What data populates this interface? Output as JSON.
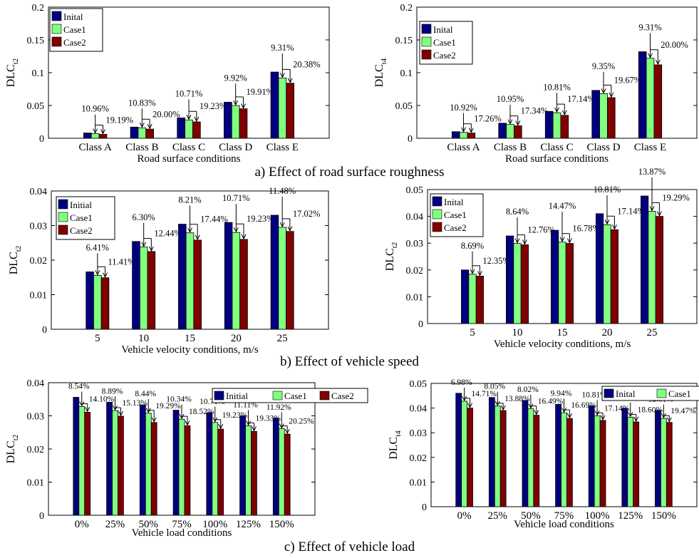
{
  "captions": {
    "a": "a) Effect of road surface roughness",
    "b": "b) Effect of vehicle speed",
    "c": "c) Effect of vehicle load"
  },
  "colors": {
    "initial": "#00007F",
    "case1": "#80FF80",
    "case2": "#800000"
  },
  "chart_data": [
    {
      "type": "bar",
      "xlabel": "Road surface conditions",
      "ylabel": "DLC",
      "ylabel_sub": "t2",
      "ylim": [
        0,
        0.2
      ],
      "yticks": [
        "0",
        "0.05",
        "0.1",
        "0.15",
        "0.2"
      ],
      "categories": [
        "Class A",
        "Class B",
        "Class C",
        "Class D",
        "Class E"
      ],
      "legend": "top-left",
      "series": [
        {
          "name": "Inital",
          "values": [
            0.008,
            0.017,
            0.031,
            0.055,
            0.101
          ]
        },
        {
          "name": "Case1",
          "values": [
            0.007,
            0.016,
            0.028,
            0.05,
            0.092
          ]
        },
        {
          "name": "Case2",
          "values": [
            0.006,
            0.014,
            0.025,
            0.045,
            0.084
          ]
        }
      ],
      "annotations": [
        {
          "c1": "10.96%",
          "c2": "19.19%"
        },
        {
          "c1": "10.83%",
          "c2": "20.00%"
        },
        {
          "c1": "10.71%",
          "c2": "19.23%"
        },
        {
          "c1": "9.92%",
          "c2": "19.91%"
        },
        {
          "c1": "9.31%",
          "c2": "20.38%"
        }
      ]
    },
    {
      "type": "bar",
      "xlabel": "Road surface conditions",
      "ylabel": "DLC",
      "ylabel_sub": "t4",
      "ylim": [
        0,
        0.2
      ],
      "yticks": [
        "0",
        "0.05",
        "0.1",
        "0.15",
        "0.2"
      ],
      "categories": [
        "Class A",
        "Class B",
        "Class C",
        "Class D",
        "Class E"
      ],
      "legend": "top-left",
      "series": [
        {
          "name": "Inital",
          "values": [
            0.01,
            0.023,
            0.041,
            0.073,
            0.132
          ]
        },
        {
          "name": "Case1",
          "values": [
            0.009,
            0.021,
            0.039,
            0.068,
            0.122
          ]
        },
        {
          "name": "Case2",
          "values": [
            0.008,
            0.019,
            0.035,
            0.062,
            0.112
          ]
        }
      ],
      "annotations": [
        {
          "c1": "10.92%",
          "c2": "17.26%"
        },
        {
          "c1": "10.95%",
          "c2": "17.34%"
        },
        {
          "c1": "10.81%",
          "c2": "17.14%"
        },
        {
          "c1": "9.35%",
          "c2": "19.67%"
        },
        {
          "c1": "9.31%",
          "c2": "20.00%"
        }
      ]
    },
    {
      "type": "bar",
      "xlabel": "Vehicle velocity conditions, m/s",
      "ylabel": "DLC",
      "ylabel_sub": "t2",
      "ylim": [
        0,
        0.04
      ],
      "yticks": [
        "0",
        "0.01",
        "0.02",
        "0.03",
        "0.04"
      ],
      "categories": [
        "5",
        "10",
        "15",
        "20",
        "25"
      ],
      "legend": "top-left",
      "series": [
        {
          "name": "Initial",
          "values": [
            0.0166,
            0.0254,
            0.0304,
            0.0309,
            0.033
          ]
        },
        {
          "name": "Case1",
          "values": [
            0.0156,
            0.0238,
            0.0279,
            0.028,
            0.0295
          ]
        },
        {
          "name": "Case2",
          "values": [
            0.0149,
            0.0225,
            0.0258,
            0.026,
            0.0283
          ]
        }
      ],
      "annotations": [
        {
          "c1": "6.41%",
          "c2": "11.41%"
        },
        {
          "c1": "6.30%",
          "c2": "12.44%"
        },
        {
          "c1": "8.21%",
          "c2": "17.44%"
        },
        {
          "c1": "10.71%",
          "c2": "19.23%"
        },
        {
          "c1": "11.48%",
          "c2": "17.02%"
        }
      ]
    },
    {
      "type": "bar",
      "xlabel": "Vehicle velocity conditions, m/s",
      "ylabel": "DLC",
      "ylabel_sub": "t2",
      "ylim": [
        0,
        0.05
      ],
      "yticks": [
        "0",
        "0.01",
        "0.02",
        "0.03",
        "0.04",
        "0.05"
      ],
      "categories": [
        "5",
        "10",
        "15",
        "20",
        "25"
      ],
      "legend": "top-left",
      "series": [
        {
          "name": "Inital",
          "values": [
            0.02,
            0.0327,
            0.0348,
            0.041,
            0.0476
          ]
        },
        {
          "name": "Case1",
          "values": [
            0.0184,
            0.0299,
            0.0304,
            0.0369,
            0.0419
          ]
        },
        {
          "name": "Case2",
          "values": [
            0.0177,
            0.0294,
            0.0299,
            0.035,
            0.04
          ]
        }
      ],
      "annotations": [
        {
          "c1": "8.69%",
          "c2": "12.35%"
        },
        {
          "c1": "8.64%",
          "c2": "12.76%"
        },
        {
          "c1": "14.47%",
          "c2": "16.78%"
        },
        {
          "c1": "10.81%",
          "c2": "17.14%"
        },
        {
          "c1": "13.87%",
          "c2": "19.29%"
        }
      ]
    },
    {
      "type": "bar",
      "xlabel": "Vehicle load conditions",
      "ylabel": "DLC",
      "ylabel_sub": "t2",
      "ylim": [
        0,
        0.04
      ],
      "yticks": [
        "0",
        "0.01",
        "0.02",
        "0.03",
        "0.04"
      ],
      "categories": [
        "0%",
        "25%",
        "50%",
        "75%",
        "100%",
        "125%",
        "150%"
      ],
      "legend": "top-right",
      "series": [
        {
          "name": "Initial",
          "values": [
            0.0356,
            0.0341,
            0.0333,
            0.0317,
            0.031,
            0.03,
            0.0293
          ]
        },
        {
          "name": "Case1",
          "values": [
            0.0328,
            0.0316,
            0.0308,
            0.029,
            0.028,
            0.027,
            0.0261
          ]
        },
        {
          "name": "Case2",
          "values": [
            0.0311,
            0.0299,
            0.028,
            0.027,
            0.026,
            0.0253,
            0.0245
          ]
        }
      ],
      "annotations": [
        {
          "c1": "8.54%",
          "c2": "14.10%"
        },
        {
          "c1": "8.89%",
          "c2": "15.13%"
        },
        {
          "c1": "8.44%",
          "c2": "19.29%"
        },
        {
          "c1": "10.34%",
          "c2": "18.52%"
        },
        {
          "c1": "10.71%",
          "c2": "19.23%"
        },
        {
          "c1": "11.11%",
          "c2": "19.33%"
        },
        {
          "c1": "11.92%",
          "c2": "20.25%"
        }
      ]
    },
    {
      "type": "bar",
      "xlabel": "Vehicle load conditions",
      "ylabel": "DLC",
      "ylabel_sub": "t4",
      "ylim": [
        0,
        0.05
      ],
      "yticks": [
        "0",
        "0.01",
        "0.02",
        "0.03",
        "0.04",
        "0.05"
      ],
      "categories": [
        "0%",
        "25%",
        "50%",
        "75%",
        "100%",
        "125%",
        "150%"
      ],
      "legend": "top-right",
      "series": [
        {
          "name": "Inital",
          "values": [
            0.046,
            0.0443,
            0.0431,
            0.0415,
            0.0409,
            0.0399,
            0.0391
          ]
        },
        {
          "name": "Case1",
          "values": [
            0.0428,
            0.0408,
            0.0397,
            0.0381,
            0.0369,
            0.0363,
            0.0358
          ]
        },
        {
          "name": "Case2",
          "values": [
            0.04,
            0.039,
            0.0371,
            0.0358,
            0.035,
            0.0344,
            0.0342
          ]
        }
      ],
      "annotations": [
        {
          "c1": "6.98%",
          "c2": "14.71%"
        },
        {
          "c1": "8.05%",
          "c2": "13.88%"
        },
        {
          "c1": "8.02%",
          "c2": "16.49%"
        },
        {
          "c1": "9.94%",
          "c2": "16.69%"
        },
        {
          "c1": "10.81%",
          "c2": "17.14%"
        },
        {
          "c1": "11.78%",
          "c2": "18.60%"
        },
        {
          "c1": "12.81%",
          "c2": "19.47%"
        }
      ]
    }
  ]
}
